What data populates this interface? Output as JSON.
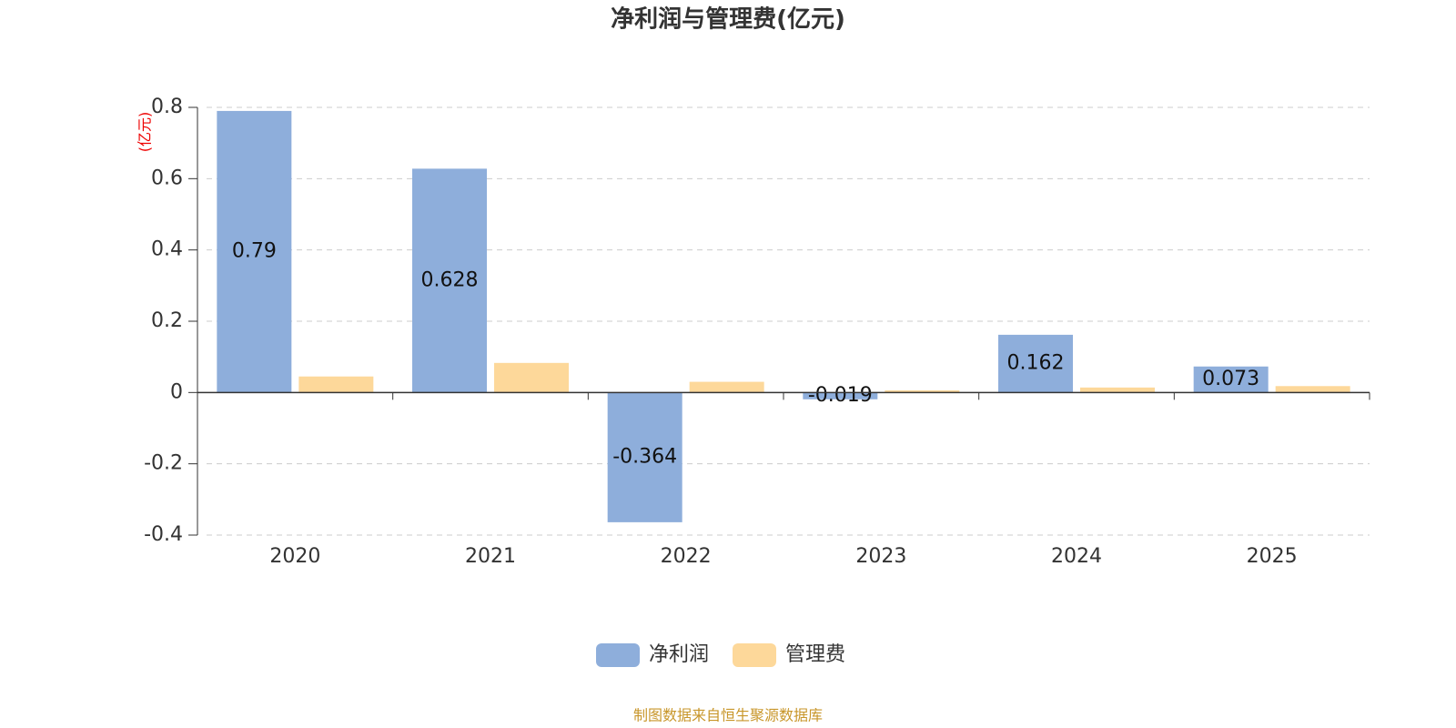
{
  "chart_data": {
    "type": "bar",
    "title": "净利润与管理费(亿元)",
    "y_axis_label": "(亿元)",
    "categories": [
      "2020",
      "2021",
      "2022",
      "2023",
      "2024",
      "2025"
    ],
    "series": [
      {
        "name": "净利润",
        "color": "#8eaedb",
        "values": [
          0.79,
          0.628,
          -0.364,
          -0.019,
          0.162,
          0.073
        ],
        "data_labels": true
      },
      {
        "name": "管理费",
        "color": "#fdd89a",
        "values": [
          0.045,
          0.083,
          0.03,
          0.006,
          0.014,
          0.018
        ],
        "data_labels": false
      }
    ],
    "ylim": [
      -0.4,
      0.8
    ],
    "yticks": [
      -0.4,
      -0.2,
      0,
      0.2,
      0.4,
      0.6,
      0.8
    ],
    "grid": true,
    "legend": "bottom",
    "source": "制图数据来自恒生聚源数据库"
  }
}
